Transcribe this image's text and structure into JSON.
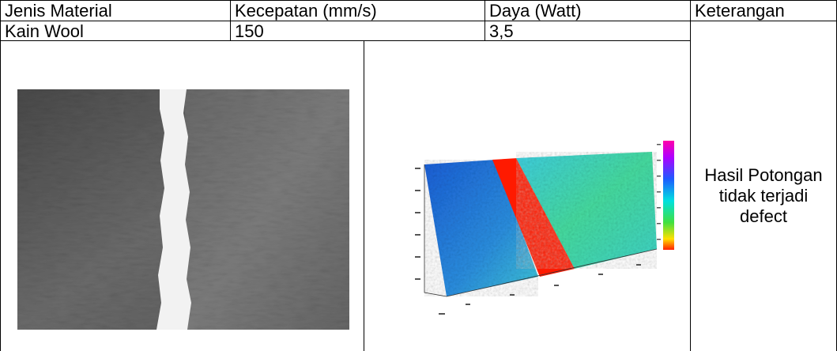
{
  "table": {
    "headers": {
      "material": "Jenis Material",
      "speed": "Kecepatan (mm/s)",
      "power": "Daya (Watt)",
      "note": "Keterangan"
    },
    "row": {
      "material": "Kain Wool",
      "speed": "150",
      "power": "3,5",
      "note": "Hasil Potongan tidak terjadi defect"
    }
  },
  "colors": {
    "border": "#000000",
    "cut_line_plot": "#ff0000",
    "surface_blue": "#1f6fd6",
    "surface_cyan": "#3fd0e0",
    "surface_green": "#4be08a"
  }
}
